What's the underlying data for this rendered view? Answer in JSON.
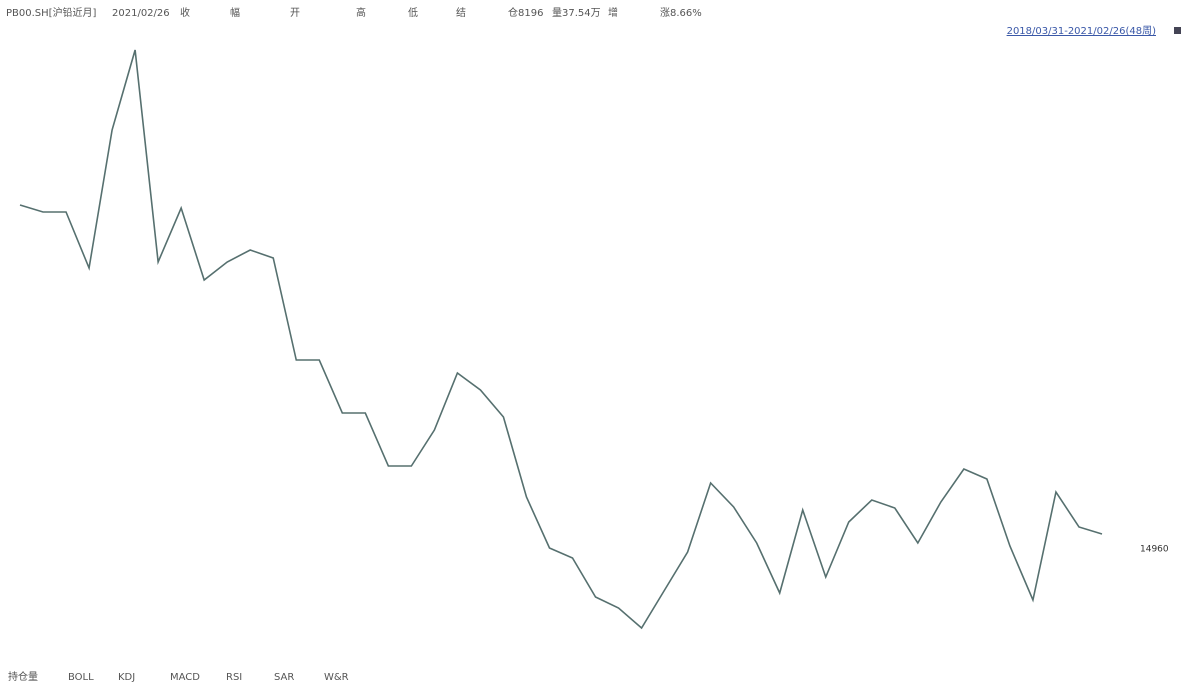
{
  "toolbar": {
    "symbol": "PB00.SH[沪铅近月]",
    "date": "2021/02/26",
    "fields": [
      "收",
      "幅",
      "开",
      "高",
      "低",
      "结",
      "仓8196",
      "量37.54万",
      "增",
      "涨8.66%"
    ]
  },
  "range_label": "2018/03/31-2021/02/26(48周)",
  "indicators": [
    "持仓量",
    "BOLL",
    "KDJ",
    "MACD",
    "RSI",
    "SAR",
    "W&R"
  ],
  "chart_data": {
    "type": "line",
    "categories": [
      null,
      null,
      null,
      null,
      null,
      null,
      null,
      null,
      null,
      null,
      null,
      null,
      null,
      null,
      null,
      null,
      null,
      null,
      null,
      null,
      null,
      null,
      null,
      null,
      null,
      null,
      null,
      null,
      null,
      null,
      null,
      null,
      null,
      null,
      null,
      null,
      null,
      null,
      null,
      null,
      null,
      null,
      null,
      null,
      null,
      null,
      null,
      null
    ],
    "series": [
      {
        "color": "#56706f",
        "values": [
          18400,
          18330,
          18330,
          17770,
          19150,
          19950,
          17830,
          18370,
          17650,
          17830,
          17950,
          17870,
          16850,
          16850,
          16320,
          16320,
          15790,
          15790,
          16150,
          16720,
          16550,
          16280,
          15480,
          14970,
          14870,
          14480,
          14370,
          14170,
          14550,
          14930,
          15620,
          15380,
          15020,
          14520,
          15350,
          14680,
          15230,
          15450,
          15370,
          15020,
          15430,
          15760,
          15660,
          14990,
          14450,
          15530,
          15180,
          15110
        ]
      }
    ],
    "last_price": 14960,
    "ylim": [
      13950,
      20050
    ]
  }
}
